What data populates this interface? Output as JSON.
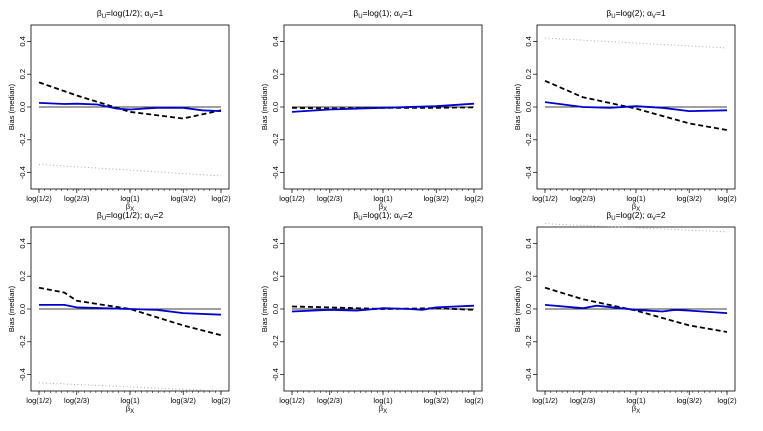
{
  "chart_data": [
    {
      "type": "line",
      "title_parts": [
        {
          "t": "β"
        },
        {
          "t": "U",
          "sub": true
        },
        {
          "t": "=log(1/2); α"
        },
        {
          "t": "V",
          "sub": true
        },
        {
          "t": "=1"
        }
      ],
      "xlabel": "βX",
      "ylabel": "Bias (median)",
      "categories": [
        "log(1/2)",
        "log(2/3)",
        "log(1)",
        "log(3/2)",
        "log(2)"
      ],
      "yticks": [
        -0.4,
        -0.2,
        0.0,
        0.2,
        0.4
      ],
      "ylim": [
        -0.5,
        0.5
      ],
      "reference_line": 0,
      "series": [
        {
          "style": "black-dashed",
          "color": "#000000",
          "x": [
            -0.693,
            -0.405,
            0.0,
            0.405,
            0.693
          ],
          "y": [
            0.15,
            0.07,
            -0.03,
            -0.07,
            -0.02
          ]
        },
        {
          "style": "blue-solid",
          "color": "#0000cc",
          "x": [
            -0.693,
            -0.5,
            -0.405,
            -0.25,
            -0.1,
            0.0,
            0.2,
            0.405,
            0.55,
            0.693
          ],
          "y": [
            0.025,
            0.018,
            0.02,
            0.015,
            -0.01,
            -0.015,
            -0.005,
            -0.005,
            -0.02,
            -0.025
          ]
        },
        {
          "style": "gray-dotted",
          "color": "#aaaaaa",
          "x": [
            -0.693,
            0.693
          ],
          "y": [
            -0.35,
            -0.42
          ]
        }
      ]
    },
    {
      "type": "line",
      "title_parts": [
        {
          "t": "β"
        },
        {
          "t": "U",
          "sub": true
        },
        {
          "t": "=log(1); α"
        },
        {
          "t": "V",
          "sub": true
        },
        {
          "t": "=1"
        }
      ],
      "xlabel": "βX",
      "ylabel": "Bias (median)",
      "categories": [
        "log(1/2)",
        "log(2/3)",
        "log(1)",
        "log(3/2)",
        "log(2)"
      ],
      "yticks": [
        -0.4,
        -0.2,
        0.0,
        0.2,
        0.4
      ],
      "ylim": [
        -0.5,
        0.5
      ],
      "reference_line": 0,
      "series": [
        {
          "style": "black-dashed",
          "color": "#000000",
          "x": [
            -0.693,
            -0.405,
            0.0,
            0.405,
            0.693
          ],
          "y": [
            -0.005,
            -0.01,
            -0.005,
            -0.005,
            -0.002
          ]
        },
        {
          "style": "blue-solid",
          "color": "#0000cc",
          "x": [
            -0.693,
            -0.405,
            0.0,
            0.405,
            0.693
          ],
          "y": [
            -0.03,
            -0.015,
            -0.005,
            0.005,
            0.02
          ]
        }
      ]
    },
    {
      "type": "line",
      "title_parts": [
        {
          "t": "β"
        },
        {
          "t": "U",
          "sub": true
        },
        {
          "t": "=log(2); α"
        },
        {
          "t": "V",
          "sub": true
        },
        {
          "t": "=1"
        }
      ],
      "xlabel": "βX",
      "ylabel": "Bias (median)",
      "categories": [
        "log(1/2)",
        "log(2/3)",
        "log(1)",
        "log(3/2)",
        "log(2)"
      ],
      "yticks": [
        -0.4,
        -0.2,
        0.0,
        0.2,
        0.4
      ],
      "ylim": [
        -0.5,
        0.5
      ],
      "reference_line": 0,
      "series": [
        {
          "style": "black-dashed",
          "color": "#000000",
          "x": [
            -0.693,
            -0.405,
            0.0,
            0.405,
            0.693
          ],
          "y": [
            0.16,
            0.06,
            -0.01,
            -0.1,
            -0.14
          ]
        },
        {
          "style": "blue-solid",
          "color": "#0000cc",
          "x": [
            -0.693,
            -0.405,
            -0.2,
            0.0,
            0.2,
            0.405,
            0.693
          ],
          "y": [
            0.03,
            0.0,
            -0.005,
            0.005,
            -0.005,
            -0.025,
            -0.02
          ]
        },
        {
          "style": "gray-dotted",
          "color": "#aaaaaa",
          "x": [
            -0.693,
            0.693
          ],
          "y": [
            0.42,
            0.36
          ]
        }
      ]
    },
    {
      "type": "line",
      "title_parts": [
        {
          "t": "β"
        },
        {
          "t": "U",
          "sub": true
        },
        {
          "t": "=log(1/2); α"
        },
        {
          "t": "V",
          "sub": true
        },
        {
          "t": "=2"
        }
      ],
      "xlabel": "βX",
      "ylabel": "Bias (median)",
      "categories": [
        "log(1/2)",
        "log(2/3)",
        "log(1)",
        "log(3/2)",
        "log(2)"
      ],
      "yticks": [
        -0.4,
        -0.2,
        0.0,
        0.2,
        0.4
      ],
      "ylim": [
        -0.5,
        0.5
      ],
      "reference_line": 0,
      "series": [
        {
          "style": "black-dashed",
          "color": "#000000",
          "x": [
            -0.693,
            -0.5,
            -0.405,
            0.0,
            0.405,
            0.693
          ],
          "y": [
            0.13,
            0.1,
            0.05,
            0.0,
            -0.1,
            -0.16
          ]
        },
        {
          "style": "blue-solid",
          "color": "#0000cc",
          "x": [
            -0.693,
            -0.5,
            -0.405,
            0.0,
            0.2,
            0.405,
            0.693
          ],
          "y": [
            0.025,
            0.025,
            0.01,
            0.0,
            -0.005,
            -0.025,
            -0.035
          ]
        },
        {
          "style": "gray-dotted",
          "color": "#aaaaaa",
          "x": [
            -0.693,
            0.693
          ],
          "y": [
            -0.45,
            -0.5
          ]
        }
      ]
    },
    {
      "type": "line",
      "title_parts": [
        {
          "t": "β"
        },
        {
          "t": "U",
          "sub": true
        },
        {
          "t": "=log(1); α"
        },
        {
          "t": "V",
          "sub": true
        },
        {
          "t": "=2"
        }
      ],
      "xlabel": "βX",
      "ylabel": "Bias (median)",
      "categories": [
        "log(1/2)",
        "log(2/3)",
        "log(1)",
        "log(3/2)",
        "log(2)"
      ],
      "yticks": [
        -0.4,
        -0.2,
        0.0,
        0.2,
        0.4
      ],
      "ylim": [
        -0.5,
        0.5
      ],
      "reference_line": 0,
      "series": [
        {
          "style": "black-dashed",
          "color": "#000000",
          "x": [
            -0.693,
            -0.405,
            0.0,
            0.405,
            0.693
          ],
          "y": [
            0.015,
            0.01,
            0.0,
            0.005,
            -0.005
          ]
        },
        {
          "style": "blue-solid",
          "color": "#0000cc",
          "x": [
            -0.693,
            -0.405,
            -0.2,
            0.0,
            0.2,
            0.3,
            0.405,
            0.693
          ],
          "y": [
            -0.015,
            -0.005,
            -0.01,
            0.005,
            0.0,
            -0.005,
            0.01,
            0.02
          ]
        }
      ]
    },
    {
      "type": "line",
      "title_parts": [
        {
          "t": "β"
        },
        {
          "t": "U",
          "sub": true
        },
        {
          "t": "=log(2); α"
        },
        {
          "t": "V",
          "sub": true
        },
        {
          "t": "=2"
        }
      ],
      "xlabel": "βX",
      "ylabel": "Bias (median)",
      "categories": [
        "log(1/2)",
        "log(2/3)",
        "log(1)",
        "log(3/2)",
        "log(2)"
      ],
      "yticks": [
        -0.4,
        -0.2,
        0.0,
        0.2,
        0.4
      ],
      "ylim": [
        -0.5,
        0.5
      ],
      "reference_line": 0,
      "series": [
        {
          "style": "black-dashed",
          "color": "#000000",
          "x": [
            -0.693,
            -0.405,
            0.0,
            0.405,
            0.693
          ],
          "y": [
            0.13,
            0.06,
            -0.01,
            -0.1,
            -0.14
          ]
        },
        {
          "style": "blue-solid",
          "color": "#0000cc",
          "x": [
            -0.693,
            -0.405,
            -0.3,
            0.0,
            0.2,
            0.3,
            0.405,
            0.693
          ],
          "y": [
            0.025,
            0.005,
            0.02,
            -0.005,
            -0.015,
            -0.005,
            -0.01,
            -0.025
          ]
        },
        {
          "style": "gray-dotted",
          "color": "#aaaaaa",
          "x": [
            -0.693,
            0.693
          ],
          "y": [
            0.52,
            0.47
          ]
        }
      ]
    }
  ]
}
